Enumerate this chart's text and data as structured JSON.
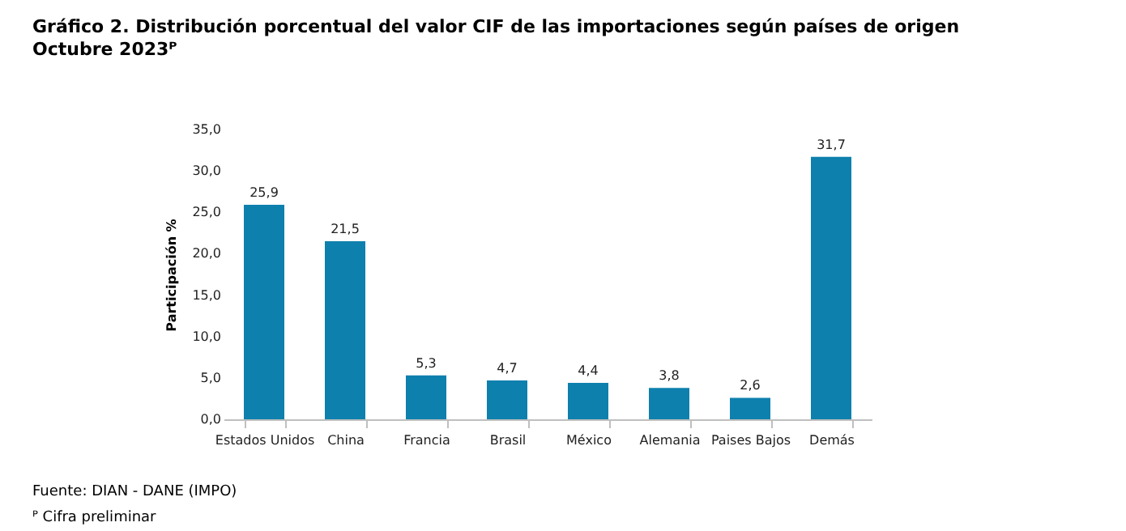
{
  "chart_data": {
    "type": "bar",
    "title": "Gráfico 2. Distribución porcentual del valor CIF de las importaciones según países de origen",
    "subtitle": "Octubre 2023ᴾ",
    "ylabel": "Participación  %",
    "categories": [
      "Estados Unidos",
      "China",
      "Francia",
      "Brasil",
      "México",
      "Alemania",
      "Paises Bajos",
      "Demás"
    ],
    "values": [
      25.9,
      21.5,
      5.3,
      4.7,
      4.4,
      3.8,
      2.6,
      31.7
    ],
    "value_labels": [
      "25,9",
      "21,5",
      "5,3",
      "4,7",
      "4,4",
      "3,8",
      "2,6",
      "31,7"
    ],
    "color": "#0e80ad",
    "ylim": [
      0,
      35
    ],
    "yticks": [
      {
        "value": 0,
        "label": "0,0"
      },
      {
        "value": 5,
        "label": "5,0"
      },
      {
        "value": 10,
        "label": "10,0"
      },
      {
        "value": 15,
        "label": "15,0"
      },
      {
        "value": 20,
        "label": "20,0"
      },
      {
        "value": 25,
        "label": "25,0"
      },
      {
        "value": 30,
        "label": "30,0"
      },
      {
        "value": 35,
        "label": "35,0"
      }
    ],
    "grid": false,
    "annotations": [
      "Fuente: DIAN - DANE (IMPO)",
      "ᴾ Cifra preliminar"
    ]
  }
}
